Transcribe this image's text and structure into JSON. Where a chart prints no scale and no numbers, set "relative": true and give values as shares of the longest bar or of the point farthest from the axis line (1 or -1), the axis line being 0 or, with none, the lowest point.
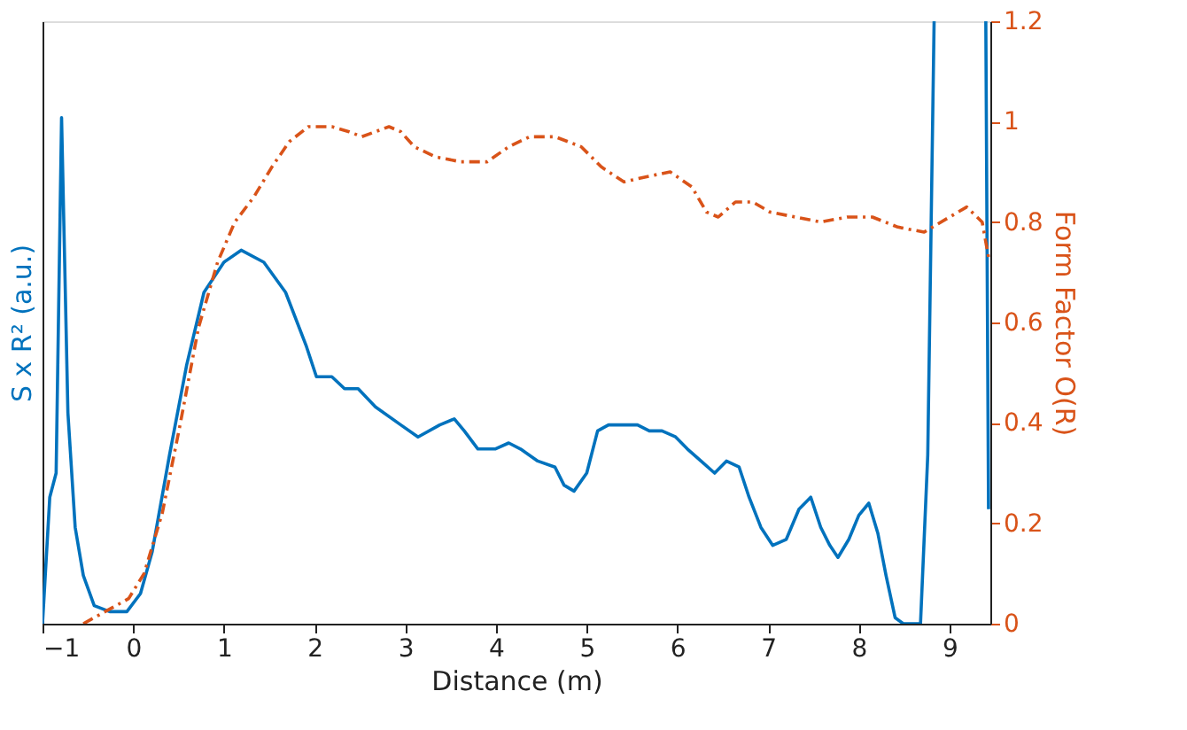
{
  "chart_data": {
    "type": "line",
    "xlabel": "Distance (m)",
    "ylabel": "S x R² (a.u.)",
    "y2label": "Form Factor O(R)",
    "relative": true,
    "xlim": [
      -1,
      9.45
    ],
    "xticks": [
      -1,
      0,
      1,
      2,
      3,
      4,
      5,
      6,
      7,
      8,
      9
    ],
    "y2lim": [
      0,
      1.2
    ],
    "y2ticks": [
      0,
      0.2,
      0.4,
      0.6,
      0.8,
      1,
      1.2
    ],
    "grid": false,
    "series": [
      {
        "color": "#0072bd",
        "line_style": "solid",
        "x": [
          -1,
          -0.92,
          -0.85,
          -0.79,
          -0.72,
          -0.64,
          -0.55,
          -0.43,
          -0.26,
          -0.07,
          0.08,
          0.21,
          0.4,
          0.59,
          0.78,
          1.0,
          1.19,
          1.44,
          1.68,
          1.91,
          2.02,
          2.19,
          2.33,
          2.48,
          2.67,
          2.95,
          3.14,
          3.38,
          3.54,
          3.65,
          3.8,
          3.99,
          4.14,
          4.27,
          4.46,
          4.65,
          4.75,
          4.86,
          5.0,
          5.12,
          5.24,
          5.41,
          5.56,
          5.69,
          5.83,
          5.98,
          6.11,
          6.26,
          6.41,
          6.54,
          6.68,
          6.79,
          6.92,
          7.05,
          7.2,
          7.34,
          7.47,
          7.58,
          7.68,
          7.77,
          7.89,
          8.0,
          8.11,
          8.21,
          8.3,
          8.4,
          8.49,
          8.68,
          8.76,
          8.83,
          9.1,
          9.4,
          9.43
        ],
        "values": [
          0,
          0.21,
          0.25,
          0.84,
          0.35,
          0.16,
          0.08,
          0.03,
          0.02,
          0.02,
          0.05,
          0.12,
          0.28,
          0.43,
          0.55,
          0.6,
          0.62,
          0.6,
          0.55,
          0.46,
          0.41,
          0.41,
          0.39,
          0.39,
          0.36,
          0.33,
          0.31,
          0.33,
          0.34,
          0.32,
          0.29,
          0.29,
          0.3,
          0.29,
          0.27,
          0.26,
          0.23,
          0.22,
          0.25,
          0.32,
          0.33,
          0.33,
          0.33,
          0.32,
          0.32,
          0.31,
          0.29,
          0.27,
          0.25,
          0.27,
          0.26,
          0.21,
          0.16,
          0.13,
          0.14,
          0.19,
          0.21,
          0.16,
          0.13,
          0.11,
          0.14,
          0.18,
          0.2,
          0.15,
          0.08,
          0.01,
          0,
          0,
          0.28,
          1.0,
          null,
          1.0,
          0.19
        ]
      },
      {
        "color": "#d95319",
        "line_style": "dashed",
        "axis": "y2",
        "x": [
          -0.55,
          -0.05,
          0.12,
          0.32,
          0.51,
          0.72,
          0.93,
          1.12,
          1.33,
          1.53,
          1.72,
          1.93,
          2.19,
          2.38,
          2.52,
          2.67,
          2.82,
          2.95,
          3.1,
          3.33,
          3.61,
          3.9,
          4.14,
          4.37,
          4.65,
          4.94,
          5.16,
          5.41,
          5.65,
          5.92,
          6.16,
          6.32,
          6.45,
          6.64,
          6.83,
          7.02,
          7.3,
          7.58,
          7.87,
          8.15,
          8.43,
          8.72,
          9.0,
          9.19,
          9.36,
          9.43
        ],
        "values": [
          0,
          0.05,
          0.1,
          0.22,
          0.39,
          0.59,
          0.72,
          0.8,
          0.85,
          0.91,
          0.96,
          0.99,
          0.99,
          0.98,
          0.97,
          0.98,
          0.99,
          0.98,
          0.95,
          0.93,
          0.92,
          0.92,
          0.95,
          0.97,
          0.97,
          0.95,
          0.91,
          0.88,
          0.89,
          0.9,
          0.87,
          0.82,
          0.81,
          0.84,
          0.84,
          0.82,
          0.81,
          0.8,
          0.81,
          0.81,
          0.79,
          0.78,
          0.81,
          0.83,
          0.8,
          0.73
        ]
      }
    ]
  }
}
